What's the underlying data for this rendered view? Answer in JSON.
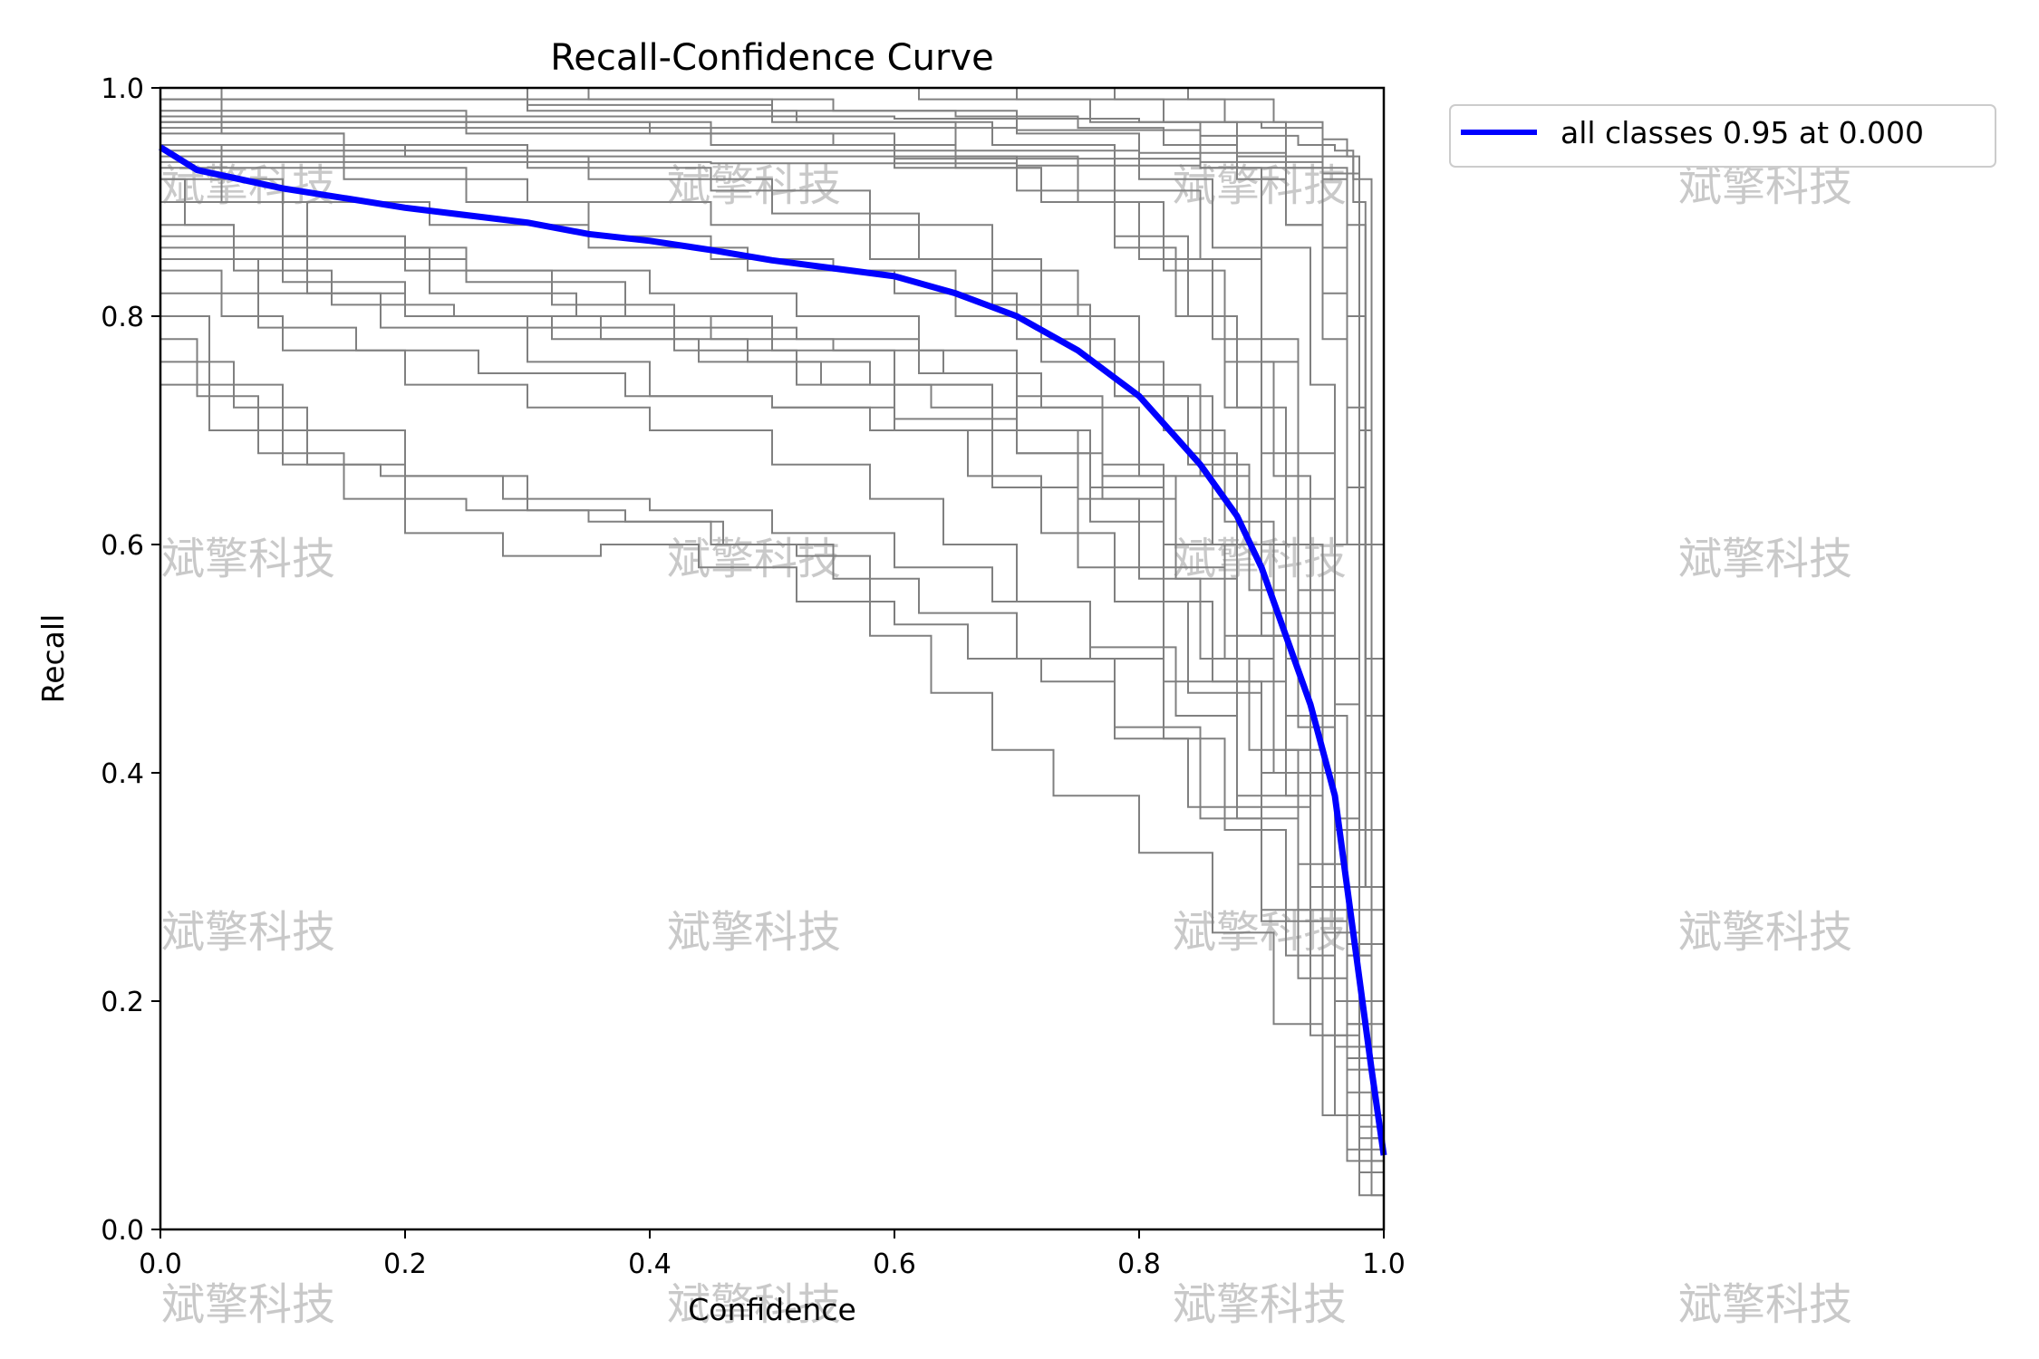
{
  "chart_data": {
    "type": "line",
    "title": "Recall-Confidence Curve",
    "xlabel": "Confidence",
    "ylabel": "Recall",
    "xlim": [
      0.0,
      1.0
    ],
    "ylim": [
      0.0,
      1.0
    ],
    "xticks": [
      "0.0",
      "0.2",
      "0.4",
      "0.6",
      "0.8",
      "1.0"
    ],
    "yticks": [
      "0.0",
      "0.2",
      "0.4",
      "0.6",
      "0.8",
      "1.0"
    ],
    "grid": false,
    "legend_position": "outside-top-right",
    "legend": [
      "all classes 0.95 at 0.000"
    ],
    "watermark": "斌擎科技",
    "colors": {
      "summary": "#0000ff",
      "class": "#808080"
    },
    "summary_series": {
      "name": "all classes 0.95 at 0.000",
      "x": [
        0.0,
        0.03,
        0.1,
        0.2,
        0.3,
        0.35,
        0.4,
        0.45,
        0.5,
        0.55,
        0.6,
        0.65,
        0.7,
        0.75,
        0.8,
        0.85,
        0.88,
        0.9,
        0.92,
        0.94,
        0.96,
        0.97,
        0.98,
        0.99,
        1.0
      ],
      "y": [
        0.948,
        0.928,
        0.912,
        0.895,
        0.882,
        0.872,
        0.866,
        0.858,
        0.849,
        0.842,
        0.835,
        0.82,
        0.8,
        0.77,
        0.73,
        0.67,
        0.625,
        0.58,
        0.52,
        0.46,
        0.38,
        0.3,
        0.22,
        0.14,
        0.065
      ]
    },
    "class_series": [
      {
        "x": [
          0.0,
          0.15,
          0.3,
          0.5,
          0.65,
          0.75,
          0.82,
          0.88,
          0.92,
          0.95,
          0.97,
          0.985,
          1.0
        ],
        "y": [
          0.99,
          0.99,
          0.985,
          0.98,
          0.975,
          0.965,
          0.95,
          0.92,
          0.88,
          0.82,
          0.65,
          0.3,
          0.0
        ]
      },
      {
        "x": [
          0.0,
          0.3,
          0.6,
          0.8,
          0.9,
          0.95,
          0.97,
          0.98,
          0.99,
          1.0
        ],
        "y": [
          0.975,
          0.975,
          0.973,
          0.97,
          0.965,
          0.955,
          0.94,
          0.7,
          0.2,
          0.0
        ]
      },
      {
        "x": [
          0.0,
          0.4,
          0.7,
          0.85,
          0.93,
          0.96,
          0.975,
          0.985,
          1.0
        ],
        "y": [
          0.965,
          0.965,
          0.963,
          0.958,
          0.95,
          0.945,
          0.9,
          0.4,
          0.0
        ]
      },
      {
        "x": [
          0.0,
          0.5,
          0.8,
          0.92,
          0.96,
          0.975,
          0.99,
          1.0
        ],
        "y": [
          0.945,
          0.945,
          0.943,
          0.94,
          0.94,
          0.92,
          0.5,
          0.0
        ]
      },
      {
        "x": [
          0.0,
          0.3,
          0.6,
          0.85,
          0.95,
          0.97,
          0.985,
          1.0
        ],
        "y": [
          0.94,
          0.94,
          0.938,
          0.935,
          0.93,
          0.88,
          0.3,
          0.0
        ]
      },
      {
        "x": [
          0.0,
          0.2,
          0.45,
          0.7,
          0.85,
          0.95,
          0.98,
          1.0
        ],
        "y": [
          0.935,
          0.935,
          0.934,
          0.932,
          0.93,
          0.925,
          0.6,
          0.0
        ]
      },
      {
        "x": [
          0.0,
          0.05,
          0.15,
          0.25,
          0.35,
          0.45,
          0.55,
          0.65,
          0.72,
          0.78,
          0.84,
          0.88,
          0.92,
          0.95,
          0.97,
          0.99,
          1.0
        ],
        "y": [
          1.0,
          0.96,
          0.93,
          0.9,
          0.87,
          0.85,
          0.84,
          0.8,
          0.76,
          0.73,
          0.68,
          0.6,
          0.5,
          0.4,
          0.25,
          0.08,
          0.0
        ]
      },
      {
        "x": [
          0.0,
          0.1,
          0.2,
          0.32,
          0.42,
          0.52,
          0.62,
          0.7,
          0.77,
          0.83,
          0.88,
          0.92,
          0.95,
          0.97,
          0.99,
          1.0
        ],
        "y": [
          0.9,
          0.87,
          0.84,
          0.81,
          0.79,
          0.78,
          0.75,
          0.72,
          0.66,
          0.6,
          0.52,
          0.42,
          0.3,
          0.18,
          0.06,
          0.0
        ]
      },
      {
        "x": [
          0.0,
          0.08,
          0.18,
          0.3,
          0.4,
          0.5,
          0.58,
          0.66,
          0.72,
          0.78,
          0.84,
          0.9,
          0.94,
          0.97,
          1.0
        ],
        "y": [
          0.85,
          0.82,
          0.79,
          0.76,
          0.73,
          0.72,
          0.7,
          0.66,
          0.61,
          0.55,
          0.47,
          0.37,
          0.27,
          0.12,
          0.0
        ]
      },
      {
        "x": [
          0.0,
          0.04,
          0.1,
          0.2,
          0.3,
          0.38,
          0.46,
          0.52,
          0.58,
          0.63,
          0.68,
          0.73,
          0.8,
          0.86,
          0.91,
          0.95,
          0.98,
          1.0
        ],
        "y": [
          0.8,
          0.74,
          0.7,
          0.66,
          0.63,
          0.62,
          0.6,
          0.59,
          0.52,
          0.47,
          0.42,
          0.38,
          0.33,
          0.26,
          0.18,
          0.1,
          0.03,
          0.0
        ]
      },
      {
        "x": [
          0.0,
          0.06,
          0.12,
          0.2,
          0.28,
          0.36,
          0.44,
          0.52,
          0.6,
          0.66,
          0.72,
          0.78,
          0.84,
          0.9,
          0.95,
          0.98,
          1.0
        ],
        "y": [
          0.76,
          0.72,
          0.67,
          0.61,
          0.59,
          0.6,
          0.58,
          0.55,
          0.53,
          0.5,
          0.48,
          0.43,
          0.37,
          0.28,
          0.17,
          0.05,
          0.0
        ]
      },
      {
        "x": [
          0.0,
          0.05,
          0.12,
          0.22,
          0.34,
          0.45,
          0.55,
          0.64,
          0.72,
          0.8,
          0.86,
          0.9,
          0.93,
          0.96,
          0.98,
          1.0
        ],
        "y": [
          0.95,
          0.9,
          0.86,
          0.82,
          0.8,
          0.78,
          0.77,
          0.75,
          0.72,
          0.66,
          0.6,
          0.52,
          0.44,
          0.3,
          0.14,
          0.0
        ]
      },
      {
        "x": [
          0.0,
          0.1,
          0.22,
          0.35,
          0.48,
          0.6,
          0.7,
          0.78,
          0.84,
          0.89,
          0.93,
          0.96,
          0.98,
          1.0
        ],
        "y": [
          0.92,
          0.9,
          0.88,
          0.86,
          0.84,
          0.82,
          0.78,
          0.73,
          0.67,
          0.6,
          0.5,
          0.35,
          0.15,
          0.0
        ]
      },
      {
        "x": [
          0.0,
          0.06,
          0.14,
          0.24,
          0.36,
          0.48,
          0.58,
          0.68,
          0.76,
          0.82,
          0.87,
          0.91,
          0.95,
          0.98,
          1.0
        ],
        "y": [
          0.88,
          0.84,
          0.81,
          0.8,
          0.78,
          0.76,
          0.74,
          0.7,
          0.65,
          0.58,
          0.5,
          0.4,
          0.28,
          0.1,
          0.0
        ]
      },
      {
        "x": [
          0.0,
          0.08,
          0.16,
          0.26,
          0.38,
          0.5,
          0.6,
          0.7,
          0.76,
          0.82,
          0.86,
          0.9,
          0.94,
          0.97,
          1.0
        ],
        "y": [
          0.82,
          0.79,
          0.77,
          0.75,
          0.73,
          0.72,
          0.71,
          0.68,
          0.62,
          0.55,
          0.48,
          0.4,
          0.3,
          0.15,
          0.0
        ]
      },
      {
        "x": [
          0.0,
          0.2,
          0.4,
          0.55,
          0.65,
          0.72,
          0.78,
          0.83,
          0.87,
          0.9,
          0.93,
          0.96,
          0.98,
          1.0
        ],
        "y": [
          0.97,
          0.97,
          0.96,
          0.95,
          0.93,
          0.9,
          0.86,
          0.8,
          0.72,
          0.64,
          0.52,
          0.36,
          0.16,
          0.0
        ]
      },
      {
        "x": [
          0.0,
          0.15,
          0.3,
          0.45,
          0.58,
          0.68,
          0.75,
          0.8,
          0.85,
          0.89,
          0.92,
          0.95,
          0.97,
          1.0
        ],
        "y": [
          0.96,
          0.95,
          0.93,
          0.91,
          0.88,
          0.84,
          0.8,
          0.74,
          0.66,
          0.56,
          0.45,
          0.32,
          0.18,
          0.0
        ]
      },
      {
        "x": [
          0.0,
          0.25,
          0.45,
          0.6,
          0.7,
          0.78,
          0.84,
          0.88,
          0.92,
          0.95,
          0.97,
          0.99,
          1.0
        ],
        "y": [
          0.98,
          0.97,
          0.96,
          0.94,
          0.91,
          0.87,
          0.8,
          0.72,
          0.6,
          0.45,
          0.3,
          0.1,
          0.0
        ]
      },
      {
        "x": [
          0.0,
          0.1,
          0.25,
          0.4,
          0.52,
          0.62,
          0.7,
          0.77,
          0.82,
          0.87,
          0.91,
          0.94,
          0.97,
          1.0
        ],
        "y": [
          0.9,
          0.86,
          0.84,
          0.82,
          0.8,
          0.77,
          0.73,
          0.67,
          0.6,
          0.52,
          0.42,
          0.3,
          0.14,
          0.0
        ]
      },
      {
        "x": [
          0.0,
          0.3,
          0.5,
          0.65,
          0.75,
          0.82,
          0.87,
          0.91,
          0.94,
          0.96,
          0.98,
          1.0
        ],
        "y": [
          1.0,
          0.99,
          0.97,
          0.94,
          0.9,
          0.84,
          0.76,
          0.66,
          0.54,
          0.4,
          0.2,
          0.0
        ]
      },
      {
        "x": [
          0.0,
          0.35,
          0.55,
          0.7,
          0.8,
          0.86,
          0.9,
          0.93,
          0.96,
          0.98,
          1.0
        ],
        "y": [
          1.0,
          0.99,
          0.98,
          0.96,
          0.92,
          0.86,
          0.78,
          0.68,
          0.5,
          0.28,
          0.0
        ]
      },
      {
        "x": [
          0.0,
          0.4,
          0.62,
          0.76,
          0.85,
          0.9,
          0.94,
          0.96,
          0.98,
          1.0
        ],
        "y": [
          1.0,
          1.0,
          0.99,
          0.97,
          0.93,
          0.86,
          0.74,
          0.6,
          0.35,
          0.0
        ]
      },
      {
        "x": [
          0.0,
          0.5,
          0.7,
          0.82,
          0.88,
          0.92,
          0.95,
          0.97,
          0.99,
          1.0
        ],
        "y": [
          1.0,
          1.0,
          0.99,
          0.97,
          0.94,
          0.88,
          0.78,
          0.6,
          0.25,
          0.0
        ]
      },
      {
        "x": [
          0.0,
          0.6,
          0.78,
          0.87,
          0.92,
          0.95,
          0.97,
          0.985,
          1.0
        ],
        "y": [
          1.0,
          1.0,
          0.99,
          0.97,
          0.93,
          0.86,
          0.72,
          0.45,
          0.0
        ]
      },
      {
        "x": [
          0.0,
          0.7,
          0.84,
          0.91,
          0.95,
          0.97,
          0.985,
          1.0
        ],
        "y": [
          1.0,
          1.0,
          0.99,
          0.97,
          0.92,
          0.8,
          0.5,
          0.0
        ]
      },
      {
        "x": [
          0.0,
          0.03,
          0.08,
          0.15,
          0.25,
          0.35,
          0.45,
          0.55,
          0.62,
          0.7,
          0.78,
          0.85,
          0.9,
          0.94,
          0.97,
          1.0
        ],
        "y": [
          0.78,
          0.73,
          0.68,
          0.64,
          0.63,
          0.62,
          0.6,
          0.57,
          0.54,
          0.5,
          0.44,
          0.36,
          0.27,
          0.17,
          0.07,
          0.0
        ]
      },
      {
        "x": [
          0.0,
          0.05,
          0.1,
          0.2,
          0.3,
          0.4,
          0.5,
          0.58,
          0.64,
          0.7,
          0.76,
          0.82,
          0.87,
          0.92,
          0.96,
          1.0
        ],
        "y": [
          0.84,
          0.8,
          0.77,
          0.74,
          0.72,
          0.7,
          0.67,
          0.64,
          0.6,
          0.55,
          0.5,
          0.43,
          0.35,
          0.24,
          0.1,
          0.0
        ]
      },
      {
        "x": [
          0.0,
          0.12,
          0.25,
          0.38,
          0.5,
          0.6,
          0.68,
          0.75,
          0.8,
          0.85,
          0.89,
          0.93,
          0.96,
          0.98,
          1.0
        ],
        "y": [
          0.87,
          0.85,
          0.83,
          0.8,
          0.77,
          0.74,
          0.7,
          0.64,
          0.57,
          0.5,
          0.42,
          0.32,
          0.2,
          0.08,
          0.0
        ]
      },
      {
        "x": [
          0.0,
          0.02,
          0.06,
          0.12,
          0.2,
          0.3,
          0.42,
          0.52,
          0.6,
          0.68,
          0.75,
          0.82,
          0.88,
          0.93,
          0.97,
          1.0
        ],
        "y": [
          0.92,
          0.88,
          0.85,
          0.82,
          0.8,
          0.79,
          0.77,
          0.74,
          0.7,
          0.65,
          0.58,
          0.48,
          0.36,
          0.22,
          0.06,
          0.0
        ]
      },
      {
        "x": [
          0.0,
          0.2,
          0.35,
          0.5,
          0.62,
          0.72,
          0.8,
          0.86,
          0.9,
          0.94,
          0.97,
          0.99,
          1.0
        ],
        "y": [
          0.95,
          0.94,
          0.92,
          0.89,
          0.85,
          0.8,
          0.73,
          0.64,
          0.54,
          0.4,
          0.24,
          0.08,
          0.0
        ]
      },
      {
        "x": [
          0.0,
          0.1,
          0.2,
          0.32,
          0.44,
          0.54,
          0.63,
          0.7,
          0.77,
          0.83,
          0.88,
          0.92,
          0.95,
          0.98,
          1.0
        ],
        "y": [
          0.86,
          0.83,
          0.8,
          0.78,
          0.76,
          0.74,
          0.72,
          0.68,
          0.64,
          0.57,
          0.48,
          0.38,
          0.26,
          0.09,
          0.0
        ]
      },
      {
        "x": [
          0.0,
          0.04,
          0.1,
          0.18,
          0.28,
          0.4,
          0.5,
          0.6,
          0.68,
          0.76,
          0.83,
          0.88,
          0.93,
          0.96,
          0.99,
          1.0
        ],
        "y": [
          0.74,
          0.7,
          0.67,
          0.66,
          0.64,
          0.63,
          0.61,
          0.58,
          0.55,
          0.51,
          0.45,
          0.38,
          0.28,
          0.16,
          0.03,
          0.0
        ]
      },
      {
        "x": [
          0.0,
          0.15,
          0.3,
          0.45,
          0.58,
          0.68,
          0.76,
          0.82,
          0.87,
          0.91,
          0.94,
          0.97,
          0.99,
          1.0
        ],
        "y": [
          0.93,
          0.92,
          0.9,
          0.88,
          0.85,
          0.81,
          0.76,
          0.7,
          0.62,
          0.52,
          0.4,
          0.24,
          0.08,
          0.0
        ]
      },
      {
        "x": [
          0.0,
          0.25,
          0.45,
          0.6,
          0.72,
          0.8,
          0.86,
          0.9,
          0.93,
          0.96,
          0.98,
          1.0
        ],
        "y": [
          0.97,
          0.96,
          0.95,
          0.93,
          0.9,
          0.85,
          0.78,
          0.68,
          0.56,
          0.4,
          0.2,
          0.0
        ]
      },
      {
        "x": [
          0.0,
          0.3,
          0.52,
          0.68,
          0.78,
          0.85,
          0.9,
          0.93,
          0.96,
          0.98,
          1.0
        ],
        "y": [
          0.99,
          0.98,
          0.97,
          0.95,
          0.91,
          0.85,
          0.76,
          0.64,
          0.46,
          0.25,
          0.0
        ]
      }
    ]
  }
}
